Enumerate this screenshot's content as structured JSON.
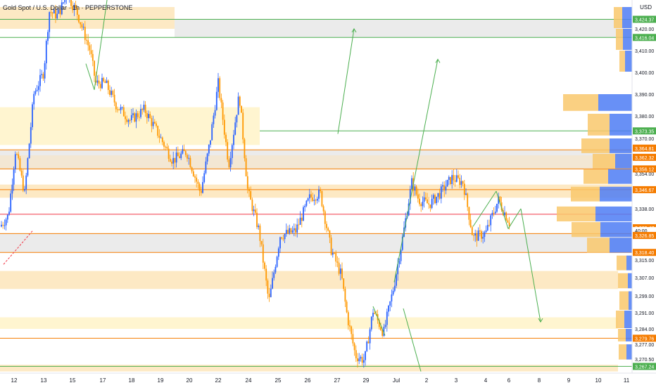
{
  "chart_data": {
    "type": "candlestick",
    "title": "Gold Spot / U.S. Dollar · 1h · PEPPERSTONE",
    "currency": "USD",
    "x_ticks": [
      "12",
      "13",
      "15",
      "17",
      "18",
      "19",
      "20",
      "22",
      "24",
      "25",
      "26",
      "27",
      "29",
      "Jul",
      "2",
      "3",
      "4",
      "6",
      "8",
      "9",
      "10",
      "11"
    ],
    "y_ticks": [
      "3,420.00",
      "3,410.00",
      "3,400.00",
      "3,390.00",
      "3,380.00",
      "3,370.00",
      "3,354.00",
      "3,338.00",
      "3,315.00",
      "3,307.00",
      "3,299.00",
      "3,291.00",
      "3,284.00",
      "3,277.00",
      "3,270.50"
    ],
    "ylim": [
      3265,
      3432
    ],
    "price_labels": [
      {
        "text": "3,424.37",
        "color": "#4caf50"
      },
      {
        "text": "3,416.04",
        "color": "#4caf50"
      },
      {
        "text": "3,373.35",
        "color": "#4caf50"
      },
      {
        "text": "3,364.81",
        "color": "#f57c00"
      },
      {
        "text": "3,362.32",
        "color": "#f57c00"
      },
      {
        "text": "3,356.12",
        "color": "#f57c00"
      },
      {
        "text": "3,346.67",
        "color": "#f57c00"
      },
      {
        "text": "3,329.47",
        "color": "#f57c00"
      },
      {
        "text": "40:00",
        "color": "#ffffff"
      },
      {
        "text": "3,326.85",
        "color": "#f57c00"
      },
      {
        "text": "3,318.40",
        "color": "#f57c00"
      },
      {
        "text": "3,279.76",
        "color": "#f57c00"
      },
      {
        "text": "3,267.24",
        "color": "#4caf50"
      }
    ],
    "colors": {
      "up": "#2962ff",
      "down": "#ff9800",
      "green_line": "#4caf50",
      "orange_line": "#f57c00",
      "red_line": "#f23645",
      "zone_orange": "#fce3b5",
      "zone_yellow": "#fff3c4",
      "zone_gray": "#e6e6e6",
      "vp_orange": "#f9c86c",
      "vp_blue": "#4d7cf5"
    }
  }
}
